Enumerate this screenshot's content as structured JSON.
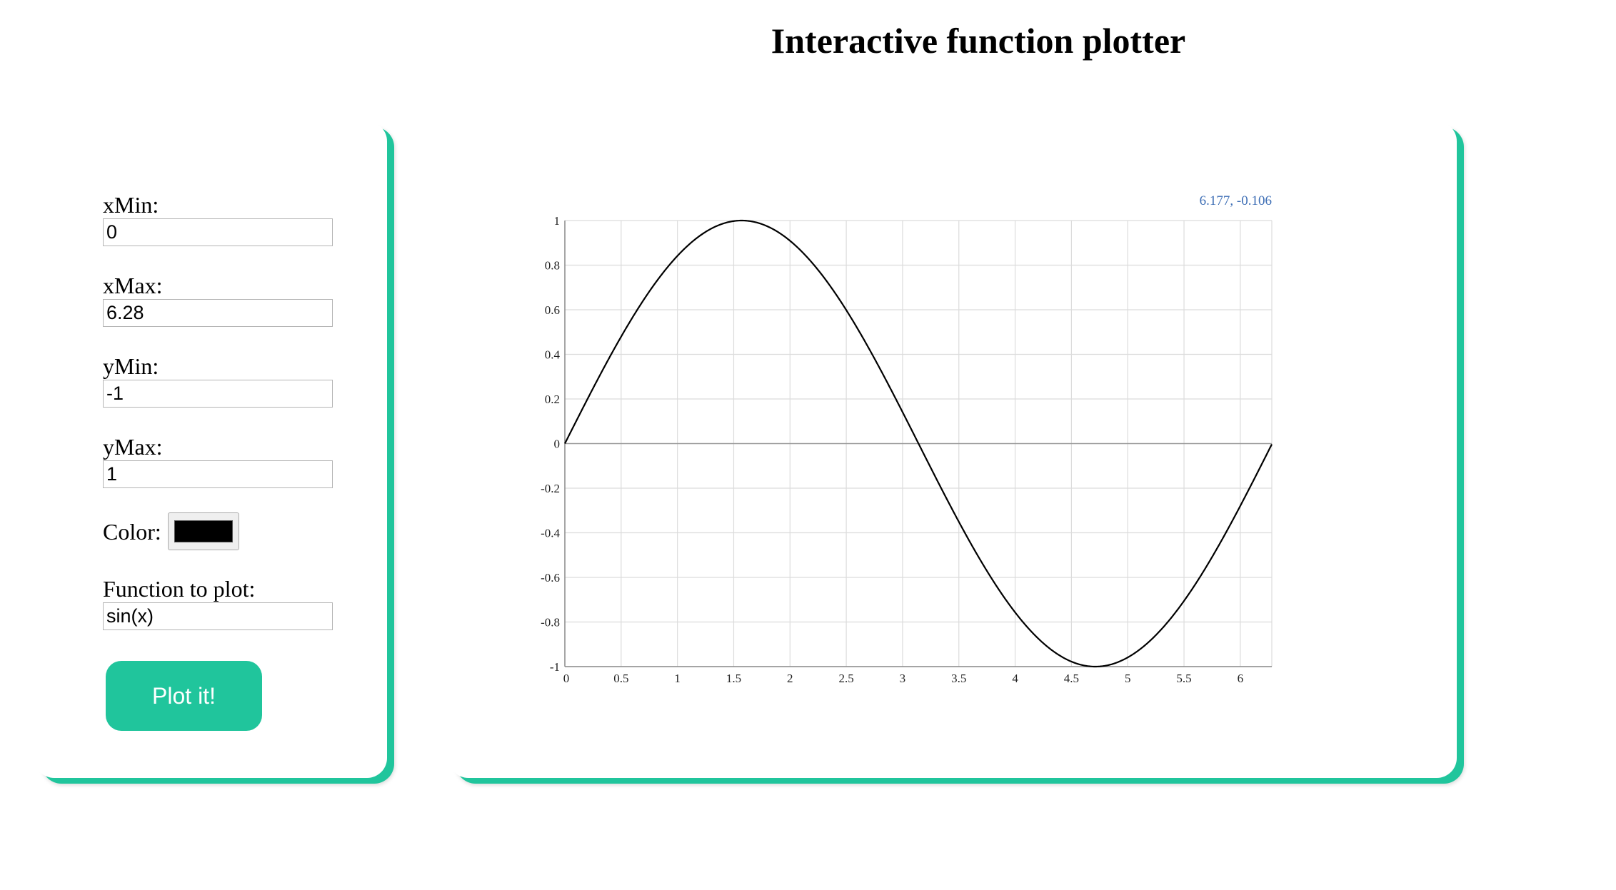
{
  "page": {
    "title": "Interactive function plotter"
  },
  "controls": {
    "x_min": {
      "label": "xMin:",
      "value": "0"
    },
    "x_max": {
      "label": "xMax:",
      "value": "6.28"
    },
    "y_min": {
      "label": "yMin:",
      "value": "-1"
    },
    "y_max": {
      "label": "yMax:",
      "value": "1"
    },
    "color": {
      "label": "Color:",
      "value": "#000000"
    },
    "function": {
      "label": "Function to plot:",
      "value": "sin(x)"
    },
    "plot_button": {
      "label": "Plot it!"
    }
  },
  "theme": {
    "accent": "#20c59c"
  },
  "chart_data": {
    "type": "line",
    "title": "",
    "function": "sin(x)",
    "series": [
      {
        "name": "sin(x)",
        "expression": "sin(x)",
        "color": "#000000"
      }
    ],
    "xlim": [
      0,
      6.28
    ],
    "ylim": [
      -1,
      1
    ],
    "x_ticks": [
      "0",
      "0.5",
      "1",
      "1.5",
      "2",
      "2.5",
      "3",
      "3.5",
      "4",
      "4.5",
      "5",
      "5.5",
      "6"
    ],
    "y_ticks": [
      "1",
      "0.8",
      "0.6",
      "0.4",
      "0.2",
      "0",
      "-0.2",
      "-0.4",
      "-0.6",
      "-0.8",
      "-1"
    ],
    "grid": true,
    "cursor_readout": "6.177, -0.106"
  }
}
